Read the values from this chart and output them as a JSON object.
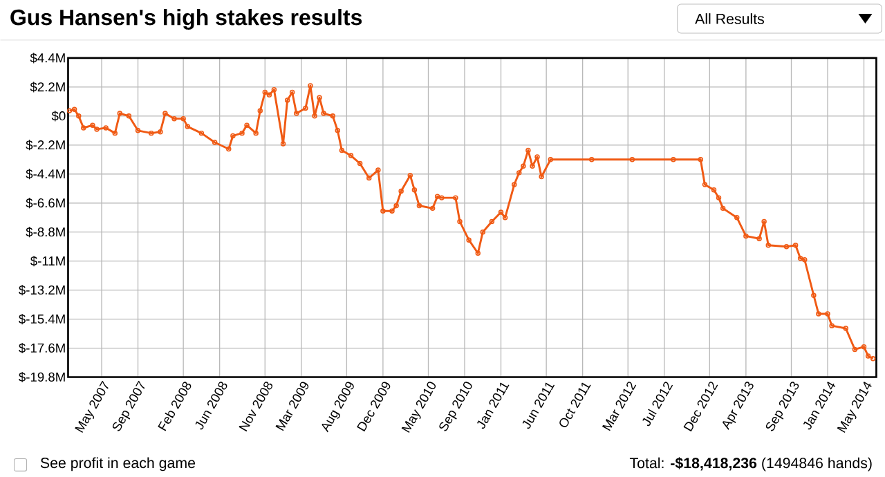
{
  "chart_data": {
    "type": "line",
    "title": "Gus Hansen's high stakes results",
    "annotations": [
      "All Results",
      "See profit in each game",
      "Total: **-$18,418,236** (1494846 hands)"
    ],
    "x": [
      "2007-01-15",
      "2007-02-01",
      "2007-02-15",
      "2007-03-01",
      "2007-04-01",
      "2007-04-15",
      "2007-05-15",
      "2007-06-15",
      "2007-07-01",
      "2007-08-01",
      "2007-09-01",
      "2007-10-15",
      "2007-11-15",
      "2007-12-01",
      "2008-01-01",
      "2008-02-01",
      "2008-02-15",
      "2008-04-01",
      "2008-05-15",
      "2008-07-01",
      "2008-07-15",
      "2008-08-15",
      "2008-09-01",
      "2008-10-01",
      "2008-10-15",
      "2008-11-01",
      "2008-11-15",
      "2008-12-01",
      "2009-01-01",
      "2009-01-15",
      "2009-02-01",
      "2009-02-15",
      "2009-03-15",
      "2009-04-01",
      "2009-04-15",
      "2009-05-01",
      "2009-05-15",
      "2009-06-15",
      "2009-07-01",
      "2009-07-15",
      "2009-08-15",
      "2009-09-15",
      "2009-10-15",
      "2009-11-15",
      "2009-12-01",
      "2010-01-01",
      "2010-01-15",
      "2010-02-01",
      "2010-03-01",
      "2010-03-15",
      "2010-04-01",
      "2010-05-15",
      "2010-06-01",
      "2010-06-15",
      "2010-08-01",
      "2010-08-15",
      "2010-09-15",
      "2010-10-15",
      "2010-11-01",
      "2010-12-01",
      "2011-01-01",
      "2011-01-15",
      "2011-02-15",
      "2011-03-01",
      "2011-03-15",
      "2011-04-01",
      "2011-04-15",
      "2011-05-01",
      "2011-05-15",
      "2011-06-15",
      "2011-11-01",
      "2012-03-15",
      "2012-08-01",
      "2012-11-01",
      "2012-11-15",
      "2012-12-15",
      "2013-01-01",
      "2013-01-15",
      "2013-03-01",
      "2013-04-01",
      "2013-05-15",
      "2013-06-01",
      "2013-06-15",
      "2013-08-15",
      "2013-09-15",
      "2013-10-01",
      "2013-10-15",
      "2013-11-15",
      "2013-12-01",
      "2014-01-01",
      "2014-01-15",
      "2014-03-01",
      "2014-04-01",
      "2014-05-01",
      "2014-05-15",
      "2014-06-01"
    ],
    "series": [
      {
        "color": "#f05a14",
        "values": [
          0.4,
          0.5,
          0,
          -0.9,
          -0.7,
          -1.0,
          -0.9,
          -1.3,
          0.2,
          0,
          -1.1,
          -1.3,
          -1.2,
          0.2,
          -0.2,
          -0.2,
          -0.8,
          -1.3,
          -2.0,
          -2.5,
          -1.5,
          -1.3,
          -0.7,
          -1.3,
          0.4,
          1.8,
          1.6,
          2.0,
          -2.1,
          1.2,
          1.8,
          0.2,
          0.6,
          2.3,
          0,
          1.4,
          0.2,
          0,
          -1.1,
          -2.6,
          -3.0,
          -3.6,
          -4.7,
          -4.1,
          -7.2,
          -7.2,
          -6.8,
          -5.7,
          -4.5,
          -5.6,
          -6.8,
          -7.0,
          -6.1,
          -6.2,
          -6.2,
          -8.0,
          -9.4,
          -10.4,
          -8.8,
          -8.0,
          -7.3,
          -7.7,
          -5.2,
          -4.3,
          -3.8,
          -2.6,
          -3.8,
          -3.1,
          -4.6,
          -3.3,
          -3.3,
          -3.3,
          -3.3,
          -3.3,
          -5.2,
          -5.6,
          -6.2,
          -7.0,
          -7.7,
          -9.1,
          -9.3,
          -8.0,
          -9.8,
          -9.9,
          -9.8,
          -10.8,
          -10.9,
          -13.6,
          -15.0,
          -15.0,
          -15.9,
          -16.1,
          -17.7,
          -17.5,
          -18.2,
          -18.4
        ]
      }
    ],
    "xlim": [
      "2007-01-10",
      "2014-06-12"
    ],
    "xticks": [
      {
        "value": "2007-05-01",
        "label": "May 2007"
      },
      {
        "value": "2007-09-01",
        "label": "Sep 2007"
      },
      {
        "value": "2008-02-01",
        "label": "Feb 2008"
      },
      {
        "value": "2008-06-01",
        "label": "Jun 2008"
      },
      {
        "value": "2008-11-01",
        "label": "Nov 2008"
      },
      {
        "value": "2009-03-01",
        "label": "Mar 2009"
      },
      {
        "value": "2009-08-01",
        "label": "Aug 2009"
      },
      {
        "value": "2009-12-01",
        "label": "Dec 2009"
      },
      {
        "value": "2010-05-01",
        "label": "May 2010"
      },
      {
        "value": "2010-09-01",
        "label": "Sep 2010"
      },
      {
        "value": "2011-01-01",
        "label": "Jan 2011"
      },
      {
        "value": "2011-06-01",
        "label": "Jun 2011"
      },
      {
        "value": "2011-10-01",
        "label": "Oct 2011"
      },
      {
        "value": "2012-03-01",
        "label": "Mar 2012"
      },
      {
        "value": "2012-07-01",
        "label": "Jul 2012"
      },
      {
        "value": "2012-12-01",
        "label": "Dec 2012"
      },
      {
        "value": "2013-04-01",
        "label": "Apr 2013"
      },
      {
        "value": "2013-09-01",
        "label": "Sep 2013"
      },
      {
        "value": "2014-01-01",
        "label": "Jan 2014"
      },
      {
        "value": "2014-05-01",
        "label": "May 2014"
      }
    ],
    "ylim": [
      -19.8,
      4.4
    ],
    "yticks": [
      {
        "value": 4.4,
        "label": "$4.4M"
      },
      {
        "value": 2.2,
        "label": "$2.2M"
      },
      {
        "value": 0,
        "label": "$0"
      },
      {
        "value": -2.2,
        "label": "$-2.2M"
      },
      {
        "value": -4.4,
        "label": "$-4.4M"
      },
      {
        "value": -6.6,
        "label": "$-6.6M"
      },
      {
        "value": -8.8,
        "label": "$-8.8M"
      },
      {
        "value": -11,
        "label": "$-11M"
      },
      {
        "value": -13.2,
        "label": "$-13.2M"
      },
      {
        "value": -15.4,
        "label": "$-15.4M"
      },
      {
        "value": -17.6,
        "label": "$-17.6M"
      },
      {
        "value": -19.8,
        "label": "$-19.8M"
      }
    ],
    "grid": true,
    "marker": "circle",
    "line_style": "solid"
  }
}
